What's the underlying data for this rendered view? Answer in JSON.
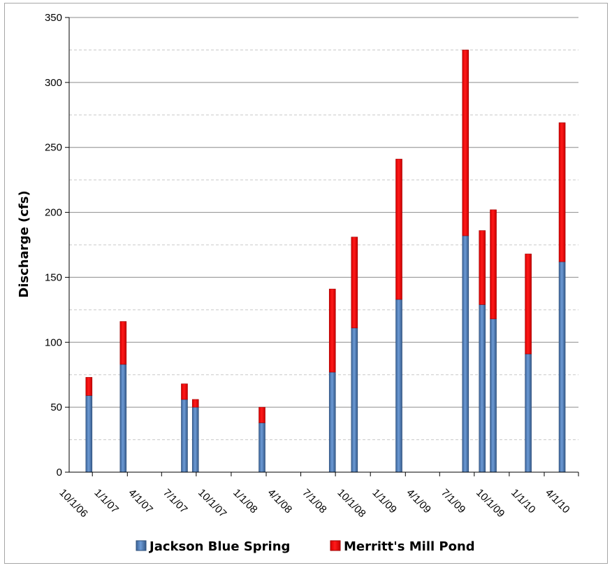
{
  "chart_data": {
    "type": "bar",
    "stacked": true,
    "ylabel": "Discharge (cfs)",
    "ylim": [
      0,
      350
    ],
    "yticks": [
      0,
      50,
      100,
      150,
      200,
      250,
      300,
      350
    ],
    "xlim": [
      "2006-08-01",
      "2010-04-01"
    ],
    "xtick_labels": [
      "10/1/06",
      "1/1/07",
      "4/1/07",
      "7/1/07",
      "10/1/07",
      "1/1/08",
      "4/1/08",
      "7/1/08",
      "10/1/08",
      "1/1/09",
      "4/1/09",
      "7/1/09",
      "10/1/09",
      "1/1/10",
      "4/1/10"
    ],
    "xtick_dates": [
      "2006-10-01",
      "2007-01-01",
      "2007-04-01",
      "2007-07-01",
      "2007-10-01",
      "2008-01-01",
      "2008-04-01",
      "2008-07-01",
      "2008-10-01",
      "2009-01-01",
      "2009-04-01",
      "2009-07-01",
      "2009-10-01",
      "2010-01-01",
      "2010-04-01"
    ],
    "grid": {
      "major": true,
      "minor_dashed": true
    },
    "legend": "bottom",
    "x": [
      "2006-09-22",
      "2006-12-21",
      "2007-05-31",
      "2007-06-29",
      "2007-12-21",
      "2008-06-23",
      "2008-08-20",
      "2008-12-15",
      "2009-06-08",
      "2009-07-22",
      "2009-08-20",
      "2009-11-20",
      "2010-02-17"
    ],
    "series": [
      {
        "name": "Jackson Blue Spring",
        "color": "#4f81bd",
        "values": [
          59,
          83,
          56,
          50,
          38,
          77,
          111,
          133,
          182,
          129,
          118,
          91,
          162
        ]
      },
      {
        "name": "Merritt's Mill Pond",
        "color": "#ff0000",
        "values": [
          14,
          33,
          12,
          6,
          12,
          64,
          70,
          108,
          143,
          57,
          84,
          77,
          107
        ]
      }
    ]
  }
}
